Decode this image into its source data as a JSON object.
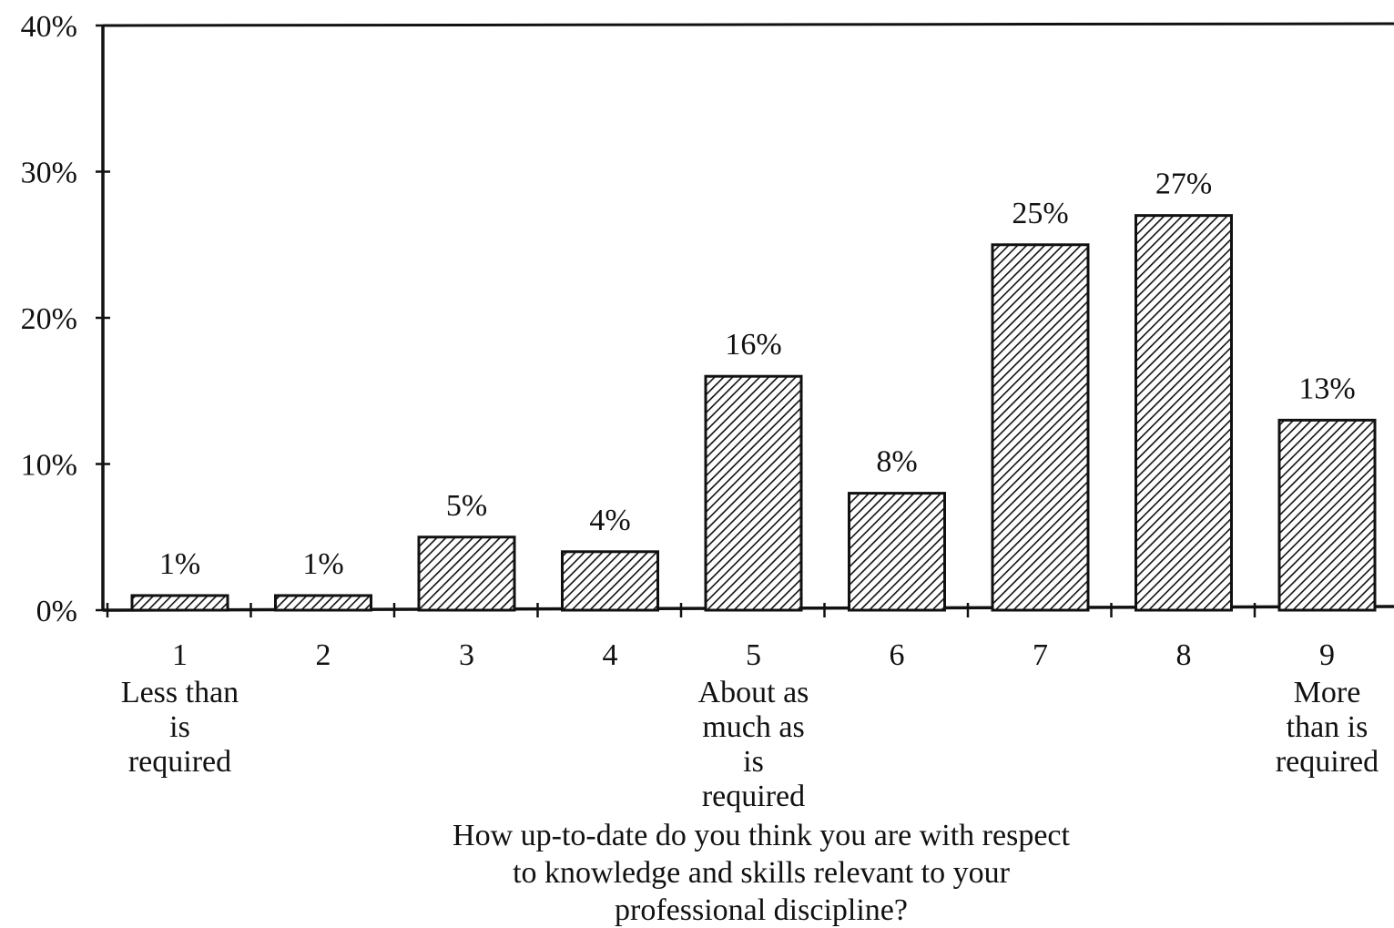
{
  "chart_data": {
    "type": "bar",
    "categories": [
      "1",
      "2",
      "3",
      "4",
      "5",
      "6",
      "7",
      "8",
      "9"
    ],
    "category_sublabels": [
      [
        "Less than",
        "is",
        "required"
      ],
      [],
      [],
      [],
      [
        "About as",
        "much as",
        "is",
        "required"
      ],
      [],
      [],
      [],
      [
        "More",
        "than is",
        "required"
      ]
    ],
    "values": [
      1,
      1,
      5,
      4,
      16,
      8,
      25,
      27,
      13
    ],
    "data_labels": [
      "1%",
      "1%",
      "5%",
      "4%",
      "16%",
      "8%",
      "25%",
      "27%",
      "13%"
    ],
    "xlabel": [
      "How up-to-date do you think you are with respect",
      "to knowledge and skills relevant to your",
      "professional discipline?"
    ],
    "ylabel": "",
    "ylim": [
      0,
      40
    ],
    "yticks": [
      0,
      10,
      20,
      30,
      40
    ],
    "ytick_labels": [
      "0%",
      "10%",
      "20%",
      "30%",
      "40%"
    ],
    "grid": false,
    "legend": "none",
    "bar_fill": "hatched",
    "colors": {
      "ink": "#111111",
      "background": "#ffffff"
    }
  }
}
